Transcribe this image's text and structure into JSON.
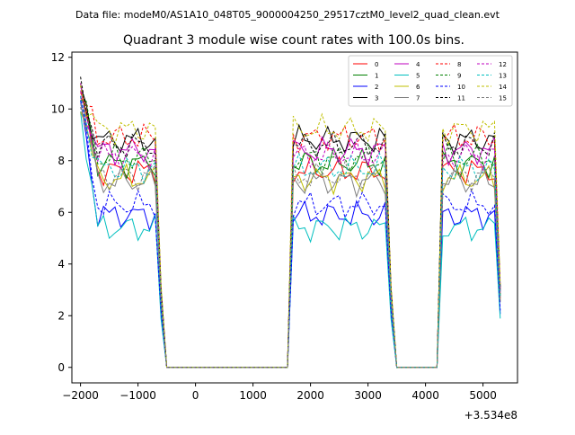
{
  "suptitle": "Data file: modeM0/AS1A10_048T05_9000004250_29517cztM0_level2_quad_clean.evt",
  "chart_data": {
    "type": "line",
    "title": "Quadrant 3 module wise count rates with 100.0s bins.",
    "xlabel": "",
    "ylabel": "",
    "x_offset_label": "+3.534e8",
    "xlim": [
      -2150,
      5600
    ],
    "ylim": [
      -0.6,
      12.2
    ],
    "xticks": [
      -2000,
      -1000,
      0,
      1000,
      2000,
      3000,
      4000,
      5000
    ],
    "xtick_labels": [
      "−2000",
      "−1000",
      "0",
      "1000",
      "2000",
      "3000",
      "4000",
      "5000"
    ],
    "yticks": [
      0,
      2,
      4,
      6,
      8,
      10,
      12
    ],
    "ytick_labels": [
      "0",
      "2",
      "4",
      "6",
      "8",
      "10",
      "12"
    ],
    "legend_position": "upper-right",
    "segments": [
      {
        "start": -2000,
        "end": -700
      },
      {
        "start": 1700,
        "end": 3300
      },
      {
        "start": 4300,
        "end": 5200
      }
    ],
    "series": [
      {
        "name": "0",
        "color": "#ff0000",
        "dash": "solid",
        "level": 7.6
      },
      {
        "name": "1",
        "color": "#008000",
        "dash": "solid",
        "level": 7.9
      },
      {
        "name": "2",
        "color": "#0000ff",
        "dash": "solid",
        "level": 5.9
      },
      {
        "name": "3",
        "color": "#000000",
        "dash": "solid",
        "level": 8.8
      },
      {
        "name": "4",
        "color": "#bf00bf",
        "dash": "solid",
        "level": 8.4
      },
      {
        "name": "5",
        "color": "#00bfbf",
        "dash": "solid",
        "level": 5.4
      },
      {
        "name": "6",
        "color": "#bfbf00",
        "dash": "solid",
        "level": 7.3
      },
      {
        "name": "7",
        "color": "#808080",
        "dash": "solid",
        "level": 7.2
      },
      {
        "name": "8",
        "color": "#ff0000",
        "dash": "dashed",
        "level": 8.9
      },
      {
        "name": "9",
        "color": "#008000",
        "dash": "dashed",
        "level": 8.1
      },
      {
        "name": "10",
        "color": "#0000ff",
        "dash": "dashed",
        "level": 6.3
      },
      {
        "name": "11",
        "color": "#000000",
        "dash": "dashed",
        "level": 8.6
      },
      {
        "name": "12",
        "color": "#bf00bf",
        "dash": "dashed",
        "level": 8.2
      },
      {
        "name": "13",
        "color": "#00bfbf",
        "dash": "dashed",
        "level": 7.7
      },
      {
        "name": "14",
        "color": "#bfbf00",
        "dash": "dashed",
        "level": 9.2
      },
      {
        "name": "15",
        "color": "#808080",
        "dash": "dashed",
        "level": 7.4
      }
    ]
  }
}
